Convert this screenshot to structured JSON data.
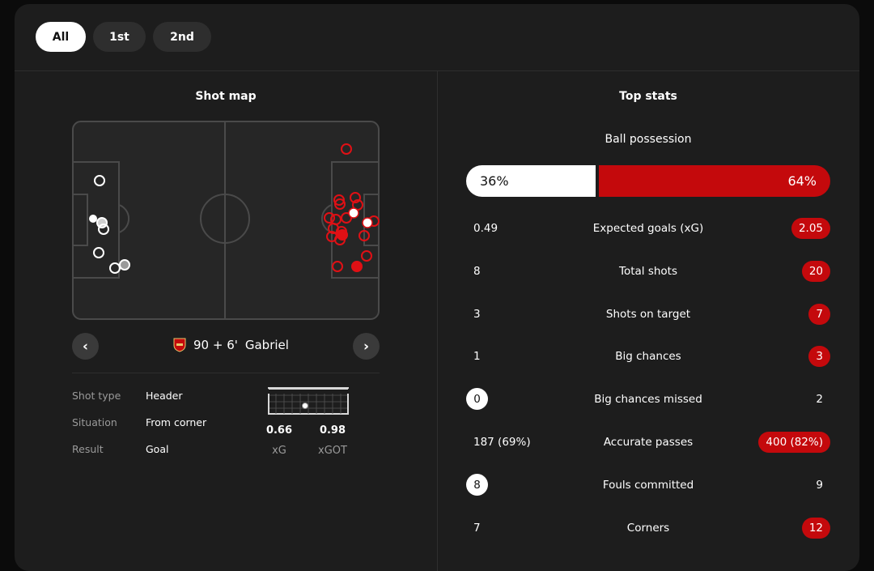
{
  "filters": [
    {
      "label": "All",
      "active": true
    },
    {
      "label": "1st",
      "active": false
    },
    {
      "label": "2nd",
      "active": false
    }
  ],
  "shot_map": {
    "title": "Shot map",
    "selected_shot": {
      "time": "90 + 6'",
      "player": "Gabriel",
      "team_crest": "arsenal-crest-icon",
      "details": [
        {
          "label": "Shot type",
          "value": "Header"
        },
        {
          "label": "Situation",
          "value": "From corner"
        },
        {
          "label": "Result",
          "value": "Goal"
        }
      ],
      "xg": {
        "value": "0.66",
        "label": "xG"
      },
      "xgot": {
        "value": "0.98",
        "label": "xGOT"
      }
    },
    "icons": {
      "prev": "chevron-left-icon",
      "next": "chevron-right-icon",
      "goal_frame": "goal-frame-icon"
    }
  },
  "top_stats": {
    "title": "Top stats",
    "possession": {
      "label": "Ball possession",
      "home": "36%",
      "away": "64%",
      "home_value": 36,
      "away_value": 64
    },
    "rows": [
      {
        "name": "Expected goals (xG)",
        "home": "0.49",
        "away": "2.05",
        "highlight": "away"
      },
      {
        "name": "Total shots",
        "home": "8",
        "away": "20",
        "highlight": "away"
      },
      {
        "name": "Shots on target",
        "home": "3",
        "away": "7",
        "highlight": "away"
      },
      {
        "name": "Big chances",
        "home": "1",
        "away": "3",
        "highlight": "away"
      },
      {
        "name": "Big chances missed",
        "home": "0",
        "away": "2",
        "highlight": "home"
      },
      {
        "name": "Accurate passes",
        "home": "187 (69%)",
        "away": "400 (82%)",
        "highlight": "away"
      },
      {
        "name": "Fouls committed",
        "home": "8",
        "away": "9",
        "highlight": "home"
      },
      {
        "name": "Corners",
        "home": "7",
        "away": "12",
        "highlight": "away"
      }
    ]
  },
  "colors": {
    "accent_red": "#c4090c",
    "card_bg": "#1d1d1d",
    "home": "#ffffff"
  }
}
